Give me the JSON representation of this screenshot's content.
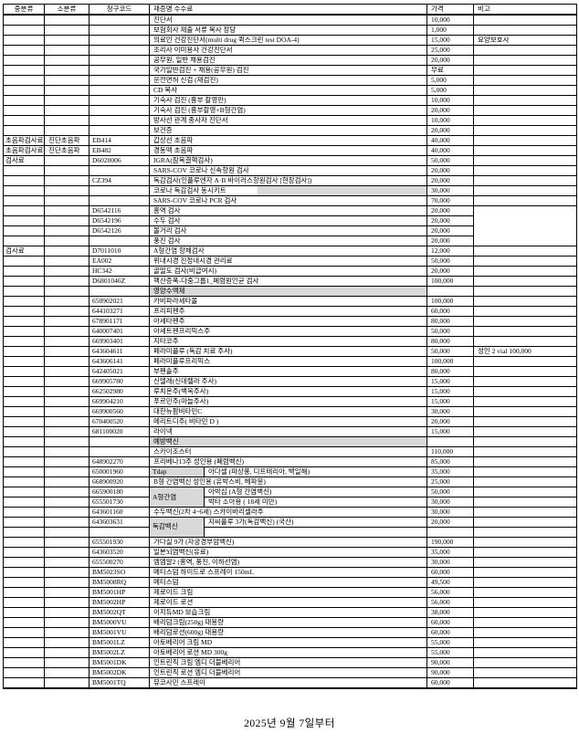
{
  "document": {
    "footer": "2025년 9월 7일부터"
  },
  "colors": {
    "section_bg": "#d9d9d9",
    "border": "#000000",
    "page_bg": "#ffffff"
  },
  "table": {
    "columns": [
      "중분류",
      "소분류",
      "청구코드",
      "재증명 수수료",
      "가격",
      "비고"
    ],
    "rows": [
      {
        "cat": "",
        "sub": "",
        "code": "",
        "name": "진단서",
        "price": "10,000",
        "note": ""
      },
      {
        "cat": "",
        "sub": "",
        "code": "",
        "name": "보험회사 제출 서류 복사 장당",
        "price": "1,000",
        "note": ""
      },
      {
        "cat": "",
        "sub": "",
        "code": "",
        "name": "의료인 건강진단서(multi drug 퀵스크린 test DOA-4)",
        "price": "15,000",
        "note": "요양보호사"
      },
      {
        "cat": "",
        "sub": "",
        "code": "",
        "name": "조리사 이미용사 건강진단서",
        "price": "25,000",
        "note": ""
      },
      {
        "cat": "",
        "sub": "",
        "code": "",
        "name": "공무원, 일반 채용검진",
        "price": "20,000",
        "note": ""
      },
      {
        "cat": "",
        "sub": "",
        "code": "",
        "name": "국가일반검진 + 채용(공무원) 검진",
        "price": "무료",
        "note": ""
      },
      {
        "cat": "",
        "sub": "",
        "code": "",
        "name": "운전면허 신검 (재검진)",
        "price": "5,000",
        "note": ""
      },
      {
        "cat": "",
        "sub": "",
        "code": "",
        "name": "CD 복사",
        "price": "5,000",
        "note": ""
      },
      {
        "cat": "",
        "sub": "",
        "code": "",
        "name": "기숙사 검진 (흉부 촬영만)",
        "price": "10,000",
        "note": ""
      },
      {
        "cat": "",
        "sub": "",
        "code": "",
        "name": "기숙사 검진 (흉부촬영+B형간염)",
        "price": "20,000",
        "note": ""
      },
      {
        "cat": "",
        "sub": "",
        "code": "",
        "name": "방사선 관계 종사자 진단서",
        "price": "10,000",
        "note": ""
      },
      {
        "cat": "",
        "sub": "",
        "code": "",
        "name": "보건증",
        "price": "20,000",
        "note": ""
      },
      {
        "cat": "초음파검사료",
        "sub": "진단초음파",
        "code": "EB414",
        "name": "갑상선 초음파",
        "price": "40,000",
        "note": ""
      },
      {
        "cat": "초음파검사료",
        "sub": "진단초음파",
        "code": "EB482",
        "name": "경동맥 초음파",
        "price": "40,000",
        "note": ""
      },
      {
        "cat": "검사료",
        "sub": "",
        "code": "D6020006",
        "name": "IGRA(잠복결핵검사)",
        "price": "50,000",
        "note": ""
      },
      {
        "cat": "",
        "sub": "",
        "code": "",
        "name": "SARS-COV 코로나 신속항원 검사",
        "price": "20,000",
        "note": ""
      },
      {
        "cat": "",
        "sub": "",
        "code": "CZ394",
        "name": "독감검사(인플루엔자 A·B 바이러스항원검사 [현장검사])",
        "price": "20,000",
        "note": ""
      },
      {
        "cat": "",
        "sub": "",
        "code": "",
        "name": "코로나 독감검사 동시키트",
        "price": "30,000",
        "note": "",
        "highlight": "partial"
      },
      {
        "cat": "",
        "sub": "",
        "code": "",
        "name": "SARS-COV 코로나 PCR 검사",
        "price": "70,000",
        "note": ""
      },
      {
        "cat": "",
        "sub": "",
        "code": "D6542116",
        "name": "홍역 검사",
        "price": "20,000",
        "note": "",
        "note_span": 4
      },
      {
        "cat": "",
        "sub": "",
        "code": "D6542196",
        "name": "수두 검사",
        "price": "20,000",
        "note_skip": true
      },
      {
        "cat": "",
        "sub": "",
        "code": "D6542126",
        "name": "볼거리 검사",
        "price": "20,000",
        "note_skip": true
      },
      {
        "cat": "",
        "sub": "",
        "code": "",
        "name": "풍진 검사",
        "price": "20,000",
        "note_skip": true
      },
      {
        "cat": "검사료",
        "sub": "",
        "code": "D7011010",
        "name": "A형간염 항체검사",
        "price": "12,000",
        "note": ""
      },
      {
        "cat": "",
        "sub": "",
        "code": "EA002",
        "name": "위내시경 진정내시경 관리료",
        "price": "50,000",
        "note": ""
      },
      {
        "cat": "",
        "sub": "",
        "code": "HC342",
        "name": "골밀도 검사(비급여시)",
        "price": "20,000",
        "note": ""
      },
      {
        "cat": "",
        "sub": "",
        "code": "D6801046Z",
        "name": "핵산증폭-다중그룹1_폐렴원인균 검사",
        "price": "100,000",
        "note": ""
      },
      {
        "cat": "",
        "sub": "",
        "code": "",
        "name": "영양수액제",
        "price": "",
        "note": "",
        "section": true
      },
      {
        "cat": "",
        "sub": "",
        "code": "650902021",
        "name": "카비파라세타몰",
        "price": "100,000",
        "note": ""
      },
      {
        "cat": "",
        "sub": "",
        "code": "644103271",
        "name": "프리피펜주",
        "price": "60,000",
        "note": ""
      },
      {
        "cat": "",
        "sub": "",
        "code": "678901171",
        "name": "아세타펜주",
        "price": "80,000",
        "note": ""
      },
      {
        "cat": "",
        "sub": "",
        "code": "640007401",
        "name": "아세트펜프리믹스주",
        "price": "50,000",
        "note": ""
      },
      {
        "cat": "",
        "sub": "",
        "code": "669903401",
        "name": "지타코주",
        "price": "80,000",
        "note": ""
      },
      {
        "cat": "",
        "sub": "",
        "code": "643604611",
        "name": "페라미플루 (독감 치료 주사)",
        "price": "50,000",
        "note": "성인 2 vial 100,000"
      },
      {
        "cat": "",
        "sub": "",
        "code": "643606141",
        "name": "페라미플루프리믹스",
        "price": "100,000",
        "note": ""
      },
      {
        "cat": "",
        "sub": "",
        "code": "642405021",
        "name": "부펜솔주",
        "price": "80,000",
        "note": ""
      },
      {
        "cat": "",
        "sub": "",
        "code": "669905780",
        "name": "신델래(신데렐라 주사)",
        "price": "15,000",
        "note": ""
      },
      {
        "cat": "",
        "sub": "",
        "code": "662502980",
        "name": "루치온주(백옥주사)",
        "price": "15,000",
        "note": ""
      },
      {
        "cat": "",
        "sub": "",
        "code": "669904210",
        "name": "푸르민주(마늘주사)",
        "price": "15,000",
        "note": ""
      },
      {
        "cat": "",
        "sub": "",
        "code": "669900560",
        "name": "대한뉴팜비타민C",
        "price": "30,000",
        "note": ""
      },
      {
        "cat": "",
        "sub": "",
        "code": "670400520",
        "name": "메리트디주( 비타민 D )",
        "price": "20,000",
        "note": ""
      },
      {
        "cat": "",
        "sub": "",
        "code": "681100020",
        "name": "라이넥",
        "price": "15,000",
        "note": ""
      },
      {
        "cat": "",
        "sub": "",
        "code": "",
        "name": "예방백신",
        "price": "",
        "note": "",
        "section": true
      },
      {
        "cat": "",
        "sub": "",
        "code": "",
        "name": "스카이조스터",
        "price": "110,000",
        "note": ""
      },
      {
        "cat": "",
        "sub": "",
        "code": "648902270",
        "name": "프리베나13주 성인용 (폐렴백신)",
        "price": "85,000",
        "note": ""
      },
      {
        "cat": "",
        "sub": "",
        "code": "650001960",
        "sublabel": "Tdap",
        "sublabel_span": 1,
        "name": "아다셀 (파상풍, 디프테리아, 백일해)",
        "price": "35,000",
        "note": ""
      },
      {
        "cat": "",
        "sub": "",
        "code": "668900920",
        "name": "B형 간염백신 성인용 (유박스비, 헤파뮨)",
        "price": "25,000",
        "note": ""
      },
      {
        "cat": "",
        "sub": "",
        "code": "665900180",
        "sublabel": "A형간염",
        "sublabel_span": 2,
        "name": "아박심 (A형 간염백신)",
        "price": "50,000",
        "note": ""
      },
      {
        "cat": "",
        "sub": "",
        "code": "655501730",
        "sublabel_skip": true,
        "name": "박타 소아용 ( 18세 미만)",
        "price": "30,000",
        "note": ""
      },
      {
        "cat": "",
        "sub": "",
        "code": "643601160",
        "name": "수두백신(2차 4~6세) 스카이바리셀라주",
        "price": "30,000",
        "note": ""
      },
      {
        "cat": "",
        "sub": "",
        "code": "643603631",
        "sublabel": "독감백신",
        "sublabel_span": 2,
        "name": "지씨플루 3가(독감백신) (국산)",
        "price": "20,000",
        "note": ""
      },
      {
        "cat": "",
        "sub": "",
        "code": "",
        "sublabel_skip": true,
        "name": "",
        "price": "",
        "note": ""
      },
      {
        "cat": "",
        "sub": "",
        "code": "655501930",
        "name": "가다실 9가 (자궁경부암백신)",
        "price": "190,000",
        "note": ""
      },
      {
        "cat": "",
        "sub": "",
        "code": "643603520",
        "name": "일본뇌염백신(유료)",
        "price": "35,000",
        "note": ""
      },
      {
        "cat": "",
        "sub": "",
        "code": "655500270",
        "name": "엠엠알2 (홍역, 풍진, 이하선염)",
        "price": "30,000",
        "note": ""
      },
      {
        "cat": "",
        "sub": "",
        "code": "BM5023SO",
        "name": "메티스덤 하이드로 스프레이 150mL",
        "price": "60,000",
        "note": ""
      },
      {
        "cat": "",
        "sub": "",
        "code": "BM5008RQ",
        "name": "메티스덤",
        "price": "49,500",
        "note": ""
      },
      {
        "cat": "",
        "sub": "",
        "code": "BM5001HP",
        "name": "제로이드 크림",
        "price": "56,000",
        "note": ""
      },
      {
        "cat": "",
        "sub": "",
        "code": "BM5002HP",
        "name": "제로이드 로션",
        "price": "56,000",
        "note": ""
      },
      {
        "cat": "",
        "sub": "",
        "code": "BM5002QT",
        "name": "이지듀MD 보습크림",
        "price": "38,000",
        "note": ""
      },
      {
        "cat": "",
        "sub": "",
        "code": "BM5000VU",
        "name": "배리덤크림(250g) 대용량",
        "price": "60,000",
        "note": ""
      },
      {
        "cat": "",
        "sub": "",
        "code": "BM5001VU",
        "name": "배리덤로션(600g) 대용량",
        "price": "60,000",
        "note": ""
      },
      {
        "cat": "",
        "sub": "",
        "code": "BM5001LZ",
        "name": "아토베리어 크림 MD",
        "price": "55,000",
        "note": ""
      },
      {
        "cat": "",
        "sub": "",
        "code": "BM5002LZ",
        "name": "아토베리어 로션 MD 300g",
        "price": "55,000",
        "note": ""
      },
      {
        "cat": "",
        "sub": "",
        "code": "BM5001DK",
        "name": "인트린직 크림 엠디 더블베리어",
        "price": "90,000",
        "note": ""
      },
      {
        "cat": "",
        "sub": "",
        "code": "BM5002DK",
        "name": "인트린직 로션 엠디 더블베리어",
        "price": "90,000",
        "note": ""
      },
      {
        "cat": "",
        "sub": "",
        "code": "BM5001TQ",
        "name": "뮤코사민 스프레이",
        "price": "60,000",
        "note": ""
      }
    ]
  }
}
